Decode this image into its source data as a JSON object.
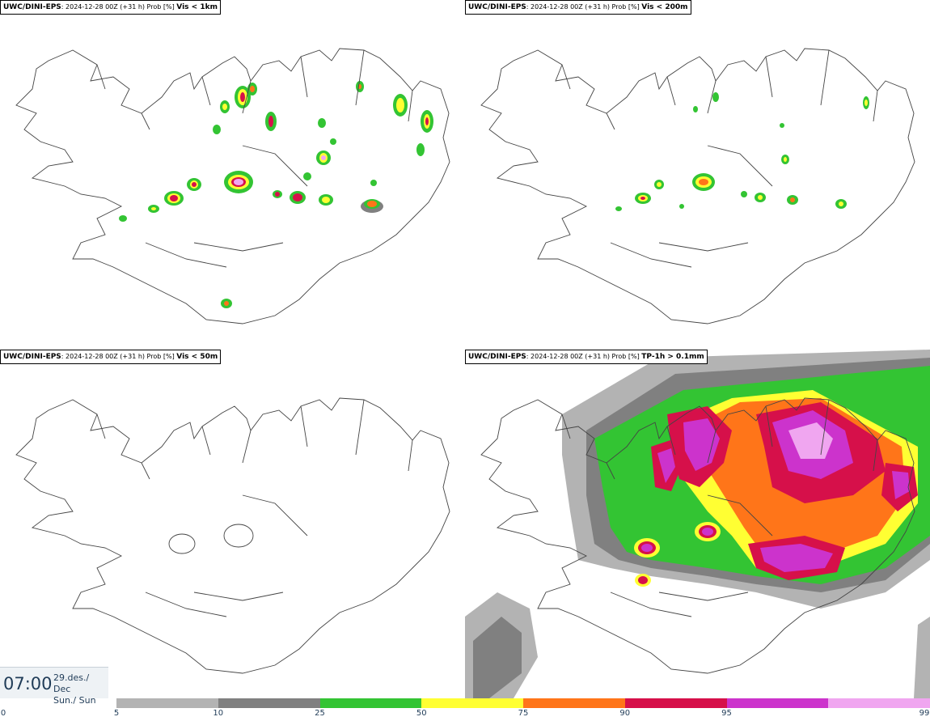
{
  "panels": [
    {
      "model": "UWC/DINI-EPS",
      "meta": ": 2024-12-28 00Z (+31 h) Prob [%] ",
      "field": "Vis < 1km"
    },
    {
      "model": "UWC/DINI-EPS",
      "meta": ": 2024-12-28 00Z (+31 h) Prob [%] ",
      "field": "Vis < 200m"
    },
    {
      "model": "UWC/DINI-EPS",
      "meta": ": 2024-12-28 00Z (+31 h) Prob [%] ",
      "field": "Vis < 50m"
    },
    {
      "model": "UWC/DINI-EPS",
      "meta": ": 2024-12-28 00Z (+31 h) Prob [%] ",
      "field": "TP-1h > 0.1mm"
    }
  ],
  "time": {
    "clock": "07:00",
    "date_line1": "29.des./ Dec",
    "date_line2": "Sun./ Sun"
  },
  "colorbar": {
    "ticks": [
      "0",
      "5",
      "10",
      "25",
      "50",
      "75",
      "90",
      "95",
      "99"
    ],
    "colors": [
      "#b3b3b3",
      "#808080",
      "#33c433",
      "#ffff33",
      "#ff7519",
      "#d6104a",
      "#cc33cc",
      "#f0a6f0"
    ]
  }
}
